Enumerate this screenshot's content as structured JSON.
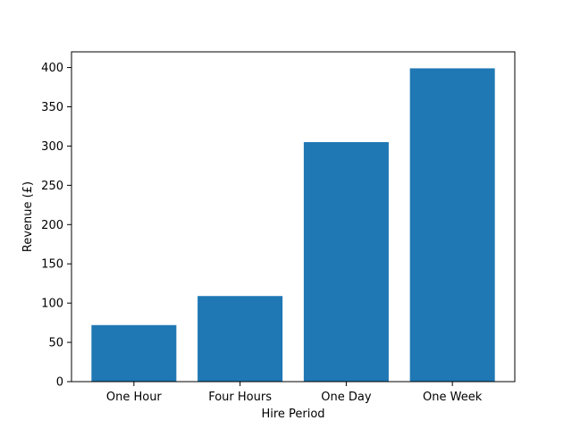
{
  "chart_data": {
    "type": "bar",
    "title": "",
    "xlabel": "Hire Period",
    "ylabel": "Revenue (£)",
    "categories": [
      "One Hour",
      "Four Hours",
      "One Day",
      "One Week"
    ],
    "values": [
      72,
      109,
      305,
      399
    ],
    "ylim": [
      0,
      420
    ],
    "yticks": [
      0,
      50,
      100,
      150,
      200,
      250,
      300,
      350,
      400
    ],
    "bar_color": "#1f77b4",
    "grid": false,
    "legend": "none"
  }
}
